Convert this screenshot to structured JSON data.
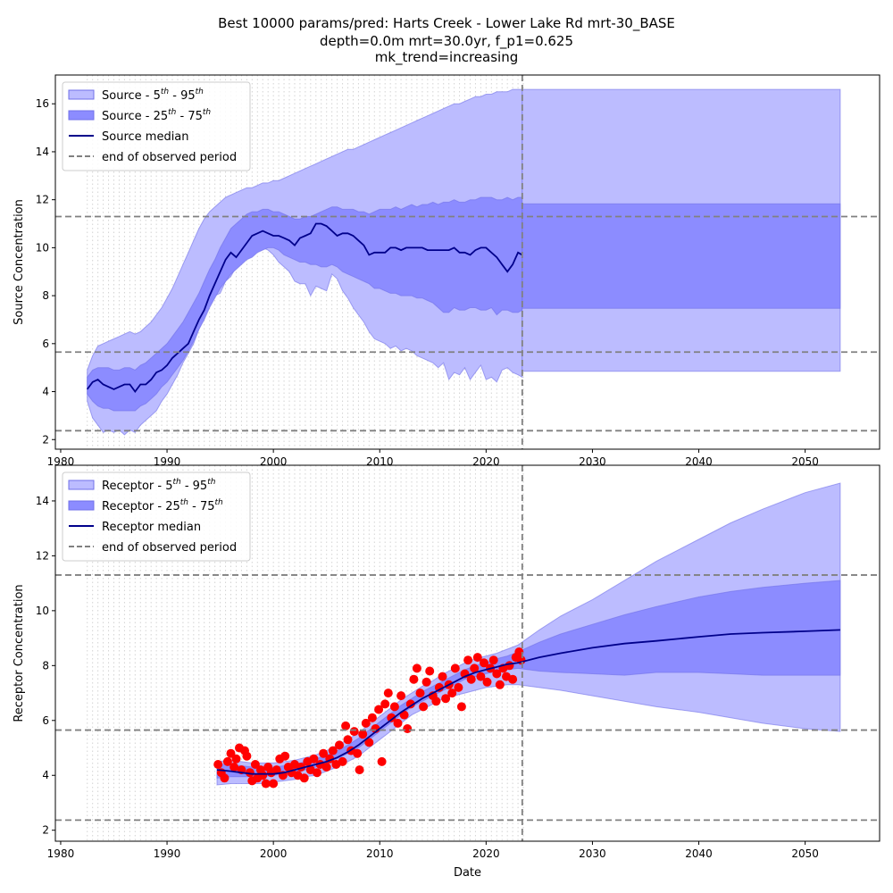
{
  "title": {
    "line1": "Best 10000 params/pred: Harts Creek - Lower Lake Rd mrt-30_BASE",
    "line2": "depth=0.0m mrt=30.0yr, f_p1=0.625",
    "line3": "mk_trend=increasing"
  },
  "colors": {
    "band_5_95": "#bcbcff",
    "band_25_75": "#8c8cff",
    "median": "#00008b",
    "observed": "#ff0000",
    "ref_line": "#808080",
    "vgrid": "#d3d3d3"
  },
  "chart_data": [
    {
      "type": "area",
      "name": "source",
      "ylabel": "Source Concentration",
      "xlabel": "",
      "xlim": [
        1979.5,
        2057
      ],
      "ylim": [
        1.6,
        17.2
      ],
      "x_ticks": [
        1980,
        1990,
        2000,
        2010,
        2020,
        2030,
        2040,
        2050
      ],
      "y_ticks": [
        2,
        4,
        6,
        8,
        10,
        12,
        14,
        16
      ],
      "hlines": [
        11.3,
        5.65,
        2.37
      ],
      "end_of_observed": 2023.4,
      "grid": "vertical dotted lines every 0.5 year, 1982.5–2023.5",
      "legend_position": "upper-left",
      "legend": [
        {
          "label": "Source - 5",
          "sup1": "th",
          "mid": " - 95",
          "sup2": "th",
          "kind": "band_5_95"
        },
        {
          "label": "Source - 25",
          "sup1": "th",
          "mid": " - 75",
          "sup2": "th",
          "kind": "band_25_75"
        },
        {
          "label": "Source median",
          "sup1": "",
          "mid": "",
          "sup2": "",
          "kind": "median"
        },
        {
          "label": "end of observed period",
          "sup1": "",
          "mid": "",
          "sup2": "",
          "kind": "ref"
        }
      ],
      "x": [
        1982.5,
        1983,
        1983.5,
        1984,
        1984.5,
        1985,
        1985.5,
        1986,
        1986.5,
        1987,
        1987.5,
        1988,
        1988.5,
        1989,
        1989.5,
        1990,
        1990.5,
        1991,
        1991.5,
        1992,
        1992.5,
        1993,
        1993.5,
        1994,
        1994.5,
        1995,
        1995.5,
        1996,
        1996.5,
        1997,
        1997.5,
        1998,
        1998.5,
        1999,
        1999.5,
        2000,
        2000.5,
        2001,
        2001.5,
        2002,
        2002.5,
        2003,
        2003.5,
        2004,
        2004.5,
        2005,
        2005.5,
        2006,
        2006.5,
        2007,
        2007.5,
        2008,
        2008.5,
        2009,
        2009.5,
        2010,
        2010.5,
        2011,
        2011.5,
        2012,
        2012.5,
        2013,
        2013.5,
        2014,
        2014.5,
        2015,
        2015.5,
        2016,
        2016.5,
        2017,
        2017.5,
        2018,
        2018.5,
        2019,
        2019.5,
        2020,
        2020.5,
        2021,
        2021.5,
        2022,
        2022.5,
        2023,
        2023.4
      ],
      "p5": [
        3.6,
        2.9,
        2.6,
        2.3,
        2.4,
        2.3,
        2.4,
        2.2,
        2.4,
        2.3,
        2.6,
        2.8,
        3.0,
        3.2,
        3.6,
        3.9,
        4.3,
        4.7,
        5.2,
        5.6,
        6.0,
        6.6,
        7.1,
        7.6,
        8.0,
        8.1,
        8.6,
        8.8,
        9.2,
        9.4,
        9.6,
        9.7,
        9.9,
        10.0,
        9.9,
        9.7,
        9.4,
        9.2,
        9.0,
        8.6,
        8.5,
        8.5,
        8.0,
        8.4,
        8.3,
        8.2,
        8.9,
        8.7,
        8.2,
        7.9,
        7.5,
        7.2,
        6.9,
        6.5,
        6.2,
        6.1,
        6.0,
        5.8,
        5.9,
        5.7,
        5.8,
        5.7,
        5.5,
        5.4,
        5.3,
        5.2,
        5.0,
        5.2,
        4.5,
        4.8,
        4.7,
        5.0,
        4.5,
        4.8,
        5.1,
        4.5,
        4.6,
        4.4,
        4.9,
        5.0,
        4.8,
        4.7,
        4.6
      ],
      "p25": [
        3.9,
        3.6,
        3.4,
        3.3,
        3.3,
        3.2,
        3.2,
        3.2,
        3.2,
        3.2,
        3.4,
        3.5,
        3.7,
        3.9,
        4.2,
        4.4,
        4.7,
        5.0,
        5.3,
        5.7,
        6.1,
        6.6,
        7.0,
        7.5,
        7.9,
        8.3,
        8.6,
        8.9,
        9.1,
        9.3,
        9.5,
        9.6,
        9.8,
        9.9,
        10.0,
        10.0,
        9.9,
        9.7,
        9.6,
        9.5,
        9.4,
        9.4,
        9.3,
        9.3,
        9.2,
        9.2,
        9.3,
        9.2,
        9.0,
        8.9,
        8.8,
        8.7,
        8.6,
        8.5,
        8.3,
        8.3,
        8.2,
        8.1,
        8.1,
        8.0,
        8.0,
        8.0,
        7.9,
        7.9,
        7.8,
        7.7,
        7.5,
        7.3,
        7.3,
        7.5,
        7.4,
        7.4,
        7.5,
        7.5,
        7.4,
        7.4,
        7.5,
        7.2,
        7.4,
        7.4,
        7.3,
        7.3,
        7.4
      ],
      "median": [
        4.1,
        4.4,
        4.5,
        4.3,
        4.2,
        4.1,
        4.2,
        4.3,
        4.3,
        4.0,
        4.3,
        4.3,
        4.5,
        4.8,
        4.9,
        5.1,
        5.4,
        5.6,
        5.8,
        6.0,
        6.5,
        7.0,
        7.4,
        8.0,
        8.5,
        9.0,
        9.5,
        9.8,
        9.6,
        9.9,
        10.2,
        10.5,
        10.6,
        10.7,
        10.6,
        10.5,
        10.5,
        10.4,
        10.3,
        10.1,
        10.4,
        10.5,
        10.6,
        11.0,
        11.0,
        10.9,
        10.7,
        10.5,
        10.6,
        10.6,
        10.5,
        10.3,
        10.1,
        9.7,
        9.8,
        9.8,
        9.8,
        10.0,
        10.0,
        9.9,
        10.0,
        10.0,
        10.0,
        10.0,
        9.9,
        9.9,
        9.9,
        9.9,
        9.9,
        10.0,
        9.8,
        9.8,
        9.7,
        9.9,
        10.0,
        10.0,
        9.8,
        9.6,
        9.3,
        9.0,
        9.3,
        9.8,
        9.7
      ],
      "p75": [
        4.6,
        4.9,
        5.0,
        5.0,
        5.0,
        4.9,
        4.9,
        5.0,
        5.0,
        4.9,
        5.1,
        5.2,
        5.4,
        5.6,
        5.8,
        6.0,
        6.3,
        6.6,
        6.9,
        7.3,
        7.7,
        8.1,
        8.6,
        9.1,
        9.5,
        10.0,
        10.4,
        10.8,
        11.0,
        11.2,
        11.4,
        11.5,
        11.5,
        11.6,
        11.6,
        11.5,
        11.5,
        11.4,
        11.3,
        11.2,
        11.2,
        11.3,
        11.3,
        11.4,
        11.5,
        11.6,
        11.7,
        11.7,
        11.6,
        11.6,
        11.6,
        11.5,
        11.5,
        11.4,
        11.5,
        11.6,
        11.6,
        11.6,
        11.7,
        11.6,
        11.7,
        11.8,
        11.7,
        11.8,
        11.8,
        11.9,
        11.8,
        11.9,
        11.9,
        12.0,
        11.9,
        11.9,
        12.0,
        12.0,
        12.1,
        12.1,
        12.1,
        12.0,
        12.0,
        12.1,
        12.0,
        12.1,
        12.1
      ],
      "p95": [
        4.9,
        5.5,
        5.9,
        6.0,
        6.1,
        6.2,
        6.3,
        6.4,
        6.5,
        6.4,
        6.5,
        6.7,
        6.9,
        7.2,
        7.5,
        7.9,
        8.3,
        8.8,
        9.3,
        9.8,
        10.3,
        10.8,
        11.2,
        11.5,
        11.7,
        11.9,
        12.1,
        12.2,
        12.3,
        12.4,
        12.5,
        12.5,
        12.6,
        12.7,
        12.7,
        12.8,
        12.8,
        12.9,
        13.0,
        13.1,
        13.2,
        13.3,
        13.4,
        13.5,
        13.6,
        13.7,
        13.8,
        13.9,
        14.0,
        14.1,
        14.1,
        14.2,
        14.3,
        14.4,
        14.5,
        14.6,
        14.7,
        14.8,
        14.9,
        15.0,
        15.1,
        15.2,
        15.3,
        15.4,
        15.5,
        15.6,
        15.7,
        15.8,
        15.9,
        16.0,
        16.0,
        16.1,
        16.2,
        16.3,
        16.3,
        16.4,
        16.4,
        16.5,
        16.5,
        16.5,
        16.6,
        16.6,
        16.6
      ],
      "forecast": {
        "x": [
          2023.4,
          2053.3
        ],
        "p5": 4.85,
        "p25": 7.47,
        "p75": 11.83,
        "p95": 16.6
      }
    },
    {
      "type": "area",
      "name": "receptor",
      "ylabel": "Receptor Concentration",
      "xlabel": "Date",
      "xlim": [
        1979.5,
        2057
      ],
      "ylim": [
        1.6,
        15.3
      ],
      "x_ticks": [
        1980,
        1990,
        2000,
        2010,
        2020,
        2030,
        2040,
        2050
      ],
      "y_ticks": [
        2,
        4,
        6,
        8,
        10,
        12,
        14
      ],
      "hlines": [
        11.3,
        5.65,
        2.37
      ],
      "end_of_observed": 2023.4,
      "grid": "vertical dotted lines every 0.5 year, 1982.5–2023.5",
      "legend_position": "upper-left",
      "legend": [
        {
          "label": "Receptor - 5",
          "sup1": "th",
          "mid": " - 95",
          "sup2": "th",
          "kind": "band_5_95"
        },
        {
          "label": "Receptor - 25",
          "sup1": "th",
          "mid": " - 75",
          "sup2": "th",
          "kind": "band_25_75"
        },
        {
          "label": "Receptor median",
          "sup1": "",
          "mid": "",
          "sup2": "",
          "kind": "median"
        },
        {
          "label": "end of observed period",
          "sup1": "",
          "mid": "",
          "sup2": "",
          "kind": "ref"
        }
      ],
      "x": [
        1994.7,
        1996,
        1997,
        1998,
        1999,
        2000,
        2001,
        2002,
        2003,
        2004,
        2005,
        2006,
        2007,
        2008,
        2009,
        2010,
        2011,
        2012,
        2013,
        2014,
        2015,
        2016,
        2017,
        2018,
        2019,
        2020,
        2021,
        2022,
        2023,
        2025,
        2027,
        2030,
        2033,
        2036,
        2040,
        2043,
        2046,
        2050,
        2053.3
      ],
      "p5": [
        3.65,
        3.7,
        3.7,
        3.7,
        3.7,
        3.75,
        3.8,
        3.85,
        3.95,
        4.0,
        4.15,
        4.3,
        4.5,
        4.7,
        5.0,
        5.3,
        5.6,
        5.9,
        6.2,
        6.4,
        6.6,
        6.8,
        6.9,
        7.0,
        7.1,
        7.2,
        7.25,
        7.3,
        7.3,
        7.2,
        7.1,
        6.9,
        6.7,
        6.5,
        6.3,
        6.1,
        5.9,
        5.7,
        5.6
      ],
      "p25": [
        3.9,
        3.95,
        3.95,
        3.95,
        3.95,
        4.0,
        4.05,
        4.1,
        4.2,
        4.3,
        4.45,
        4.6,
        4.8,
        5.0,
        5.3,
        5.6,
        5.9,
        6.2,
        6.5,
        6.7,
        6.9,
        7.1,
        7.3,
        7.5,
        7.6,
        7.7,
        7.8,
        7.85,
        7.9,
        7.8,
        7.75,
        7.7,
        7.65,
        7.75,
        7.75,
        7.7,
        7.65,
        7.65,
        7.65
      ],
      "median": [
        4.2,
        4.15,
        4.1,
        4.05,
        4.05,
        4.05,
        4.1,
        4.2,
        4.3,
        4.4,
        4.5,
        4.65,
        4.85,
        5.1,
        5.4,
        5.7,
        6.0,
        6.3,
        6.55,
        6.8,
        7.0,
        7.2,
        7.4,
        7.6,
        7.75,
        7.85,
        7.95,
        8.05,
        8.1,
        8.3,
        8.45,
        8.65,
        8.8,
        8.9,
        9.05,
        9.15,
        9.2,
        9.25,
        9.3
      ],
      "p75": [
        4.4,
        4.4,
        4.35,
        4.3,
        4.3,
        4.3,
        4.35,
        4.4,
        4.5,
        4.6,
        4.75,
        4.9,
        5.1,
        5.35,
        5.65,
        5.95,
        6.25,
        6.55,
        6.8,
        7.05,
        7.25,
        7.45,
        7.65,
        7.85,
        8.0,
        8.1,
        8.25,
        8.35,
        8.5,
        8.85,
        9.15,
        9.5,
        9.85,
        10.15,
        10.5,
        10.7,
        10.85,
        11.0,
        11.1
      ],
      "p95": [
        4.5,
        4.55,
        4.5,
        4.45,
        4.45,
        4.45,
        4.5,
        4.55,
        4.65,
        4.75,
        4.9,
        5.1,
        5.3,
        5.55,
        5.85,
        6.15,
        6.45,
        6.75,
        7.0,
        7.25,
        7.45,
        7.7,
        7.9,
        8.1,
        8.25,
        8.35,
        8.45,
        8.6,
        8.75,
        9.3,
        9.8,
        10.4,
        11.1,
        11.8,
        12.6,
        13.2,
        13.7,
        14.3,
        14.65
      ],
      "observed": {
        "x": [
          1994.8,
          1995.1,
          1995.4,
          1995.7,
          1996.0,
          1996.3,
          1996.5,
          1996.8,
          1997.0,
          1997.3,
          1997.5,
          1997.8,
          1998.0,
          1998.3,
          1998.5,
          1998.8,
          1999.0,
          1999.3,
          1999.5,
          1999.8,
          2000.0,
          2000.3,
          2000.6,
          2000.9,
          2001.1,
          2001.4,
          2001.7,
          2002.0,
          2002.3,
          2002.6,
          2002.9,
          2003.2,
          2003.5,
          2003.8,
          2004.1,
          2004.4,
          2004.7,
          2005.0,
          2005.3,
          2005.6,
          2005.9,
          2006.2,
          2006.5,
          2006.8,
          2007.0,
          2007.3,
          2007.6,
          2007.9,
          2008.1,
          2008.4,
          2008.7,
          2009.0,
          2009.3,
          2009.6,
          2009.9,
          2010.2,
          2010.5,
          2010.8,
          2011.1,
          2011.4,
          2011.7,
          2012.0,
          2012.3,
          2012.6,
          2012.9,
          2013.2,
          2013.5,
          2013.8,
          2014.1,
          2014.4,
          2014.7,
          2015.0,
          2015.3,
          2015.6,
          2015.9,
          2016.2,
          2016.5,
          2016.8,
          2017.1,
          2017.4,
          2017.7,
          2018.0,
          2018.3,
          2018.6,
          2018.9,
          2019.2,
          2019.5,
          2019.8,
          2020.1,
          2020.4,
          2020.7,
          2021.0,
          2021.3,
          2021.6,
          2021.9,
          2022.2,
          2022.5,
          2022.8,
          2023.1,
          2023.3
        ],
        "y": [
          4.4,
          4.1,
          3.9,
          4.5,
          4.8,
          4.3,
          4.6,
          5.0,
          4.2,
          4.9,
          4.7,
          4.1,
          3.8,
          4.4,
          3.9,
          4.2,
          4.0,
          3.7,
          4.3,
          4.1,
          3.7,
          4.2,
          4.6,
          4.0,
          4.7,
          4.3,
          4.1,
          4.4,
          4.0,
          4.3,
          3.9,
          4.5,
          4.2,
          4.6,
          4.1,
          4.4,
          4.8,
          4.3,
          4.6,
          4.9,
          4.4,
          5.1,
          4.5,
          5.8,
          5.3,
          4.9,
          5.6,
          4.8,
          4.2,
          5.5,
          5.9,
          5.2,
          6.1,
          5.7,
          6.4,
          4.5,
          6.6,
          7.0,
          6.1,
          6.5,
          5.9,
          6.9,
          6.2,
          5.7,
          6.6,
          7.5,
          7.9,
          7.0,
          6.5,
          7.4,
          7.8,
          6.9,
          6.7,
          7.2,
          7.6,
          6.8,
          7.3,
          7.0,
          7.9,
          7.2,
          6.5,
          7.7,
          8.2,
          7.5,
          7.9,
          8.3,
          7.6,
          8.1,
          7.4,
          7.9,
          8.2,
          7.7,
          7.3,
          7.9,
          7.6,
          8.0,
          7.5,
          8.3,
          8.5,
          8.2
        ]
      }
    }
  ]
}
